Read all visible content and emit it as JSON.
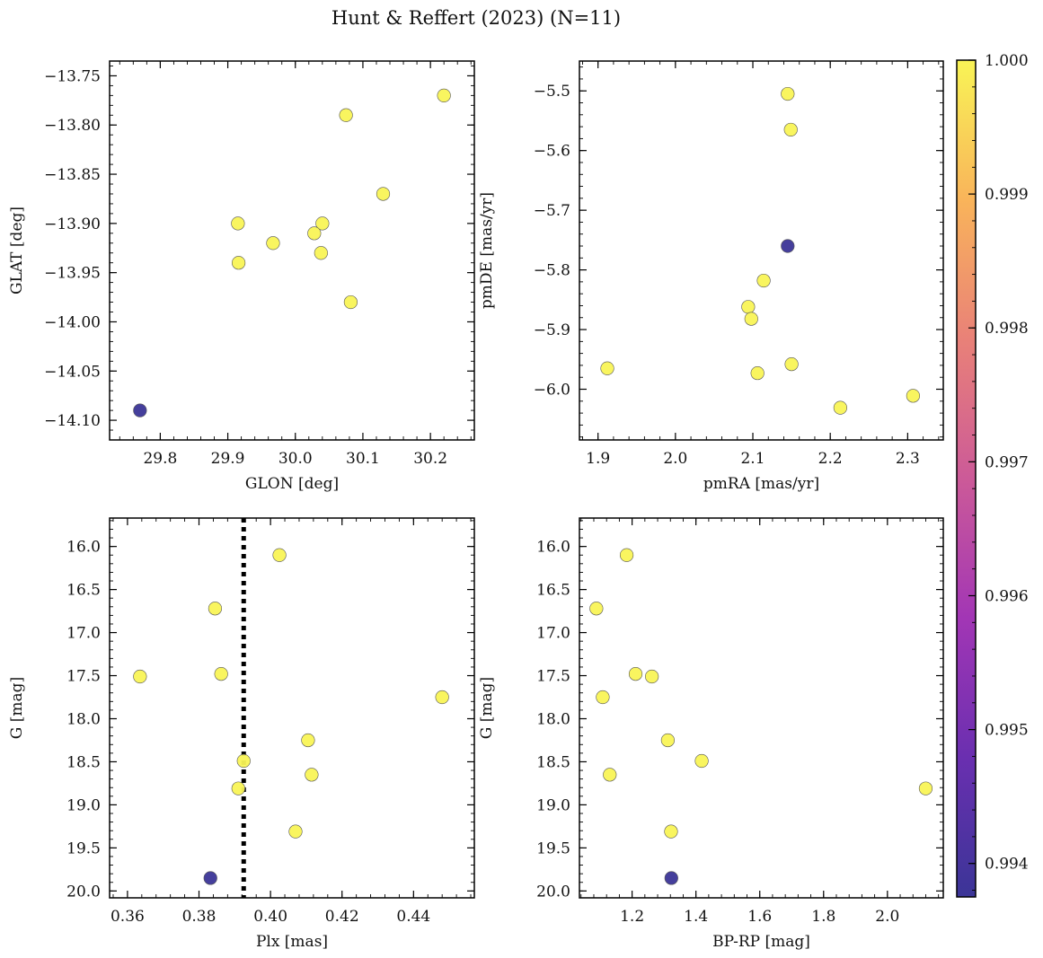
{
  "title": "Hunt & Reffert (2023) (N=11)",
  "colorbar": {
    "min": 0.99375,
    "max": 1.0,
    "ticks": [
      0.994,
      0.995,
      0.996,
      0.997,
      0.998,
      0.999,
      1.0
    ],
    "tick_labels": [
      "0.994",
      "0.995",
      "0.996",
      "0.997",
      "0.998",
      "0.999",
      "1.000"
    ],
    "colormap": "plasma",
    "colormap_stops": [
      "#3b3597",
      "#6a2fb0",
      "#a236b5",
      "#cc5a98",
      "#e98178",
      "#f9b45a",
      "#f9f456"
    ]
  },
  "colors": {
    "member_high": "#f0f050",
    "member_low": "#403c9a",
    "vline": "#000000"
  },
  "chart_data": [
    {
      "type": "scatter",
      "id": "glon-glat",
      "xlabel": "GLON [deg]",
      "ylabel": "GLAT [deg]",
      "xlim": [
        29.725,
        30.265
      ],
      "ylim": [
        -14.12,
        -13.735
      ],
      "y_inverted": false,
      "xticks": [
        29.8,
        29.9,
        30.0,
        30.1,
        30.2
      ],
      "xtick_labels": [
        "29.8",
        "29.9",
        "30.0",
        "30.1",
        "30.2"
      ],
      "xminor": 0.02,
      "yticks": [
        -13.75,
        -13.8,
        -13.85,
        -13.9,
        -13.95,
        -14.0,
        -14.05,
        -14.1
      ],
      "ytick_labels": [
        "−13.75",
        "−13.80",
        "−13.85",
        "−13.90",
        "−13.95",
        "−14.00",
        "−14.05",
        "−14.10"
      ],
      "yminor": 0.01,
      "points": [
        {
          "x": 30.22,
          "y": -13.77,
          "c": 1.0
        },
        {
          "x": 30.075,
          "y": -13.79,
          "c": 1.0
        },
        {
          "x": 30.13,
          "y": -13.87,
          "c": 1.0
        },
        {
          "x": 29.915,
          "y": -13.9,
          "c": 1.0
        },
        {
          "x": 30.04,
          "y": -13.9,
          "c": 1.0
        },
        {
          "x": 30.028,
          "y": -13.91,
          "c": 1.0
        },
        {
          "x": 29.967,
          "y": -13.92,
          "c": 1.0
        },
        {
          "x": 29.916,
          "y": -13.94,
          "c": 1.0
        },
        {
          "x": 30.038,
          "y": -13.93,
          "c": 1.0
        },
        {
          "x": 30.082,
          "y": -13.98,
          "c": 1.0
        },
        {
          "x": 29.77,
          "y": -14.09,
          "c": 0.99375
        }
      ]
    },
    {
      "type": "scatter",
      "id": "pmra-pmde",
      "xlabel": "pmRA [mas/yr]",
      "ylabel": "pmDE [mas/yr]",
      "xlim": [
        1.876,
        2.346
      ],
      "ylim": [
        -6.085,
        -5.45
      ],
      "y_inverted": false,
      "xticks": [
        1.9,
        2.0,
        2.1,
        2.2,
        2.3
      ],
      "xtick_labels": [
        "1.9",
        "2.0",
        "2.1",
        "2.2",
        "2.3"
      ],
      "xminor": 0.02,
      "yticks": [
        -5.5,
        -5.6,
        -5.7,
        -5.8,
        -5.9,
        -6.0
      ],
      "ytick_labels": [
        "−5.5",
        "−5.6",
        "−5.7",
        "−5.8",
        "−5.9",
        "−6.0"
      ],
      "yminor": 0.02,
      "points": [
        {
          "x": 2.145,
          "y": -5.505,
          "c": 1.0
        },
        {
          "x": 2.149,
          "y": -5.565,
          "c": 1.0
        },
        {
          "x": 2.145,
          "y": -5.76,
          "c": 0.99375
        },
        {
          "x": 2.114,
          "y": -5.818,
          "c": 1.0
        },
        {
          "x": 2.094,
          "y": -5.862,
          "c": 1.0
        },
        {
          "x": 2.098,
          "y": -5.882,
          "c": 1.0
        },
        {
          "x": 1.912,
          "y": -5.965,
          "c": 1.0
        },
        {
          "x": 2.106,
          "y": -5.973,
          "c": 1.0
        },
        {
          "x": 2.15,
          "y": -5.958,
          "c": 1.0
        },
        {
          "x": 2.213,
          "y": -6.031,
          "c": 1.0
        },
        {
          "x": 2.307,
          "y": -6.011,
          "c": 1.0
        }
      ]
    },
    {
      "type": "scatter",
      "id": "plx-g",
      "xlabel": "Plx [mas]",
      "ylabel": "G [mag]",
      "xlim": [
        0.355,
        0.457
      ],
      "ylim": [
        15.67,
        20.08
      ],
      "y_inverted": true,
      "xticks": [
        0.36,
        0.38,
        0.4,
        0.42,
        0.44
      ],
      "xtick_labels": [
        "0.36",
        "0.38",
        "0.40",
        "0.42",
        "0.44"
      ],
      "xminor": 0.004,
      "yticks": [
        16.0,
        16.5,
        17.0,
        17.5,
        18.0,
        18.5,
        19.0,
        19.5,
        20.0
      ],
      "ytick_labels": [
        "16.0",
        "16.5",
        "17.0",
        "17.5",
        "18.0",
        "18.5",
        "19.0",
        "19.5",
        "20.0"
      ],
      "yminor": 0.1,
      "vline": 0.3925,
      "points": [
        {
          "x": 0.4025,
          "y": 16.1,
          "c": 1.0
        },
        {
          "x": 0.3845,
          "y": 16.72,
          "c": 1.0
        },
        {
          "x": 0.3862,
          "y": 17.48,
          "c": 1.0
        },
        {
          "x": 0.3635,
          "y": 17.51,
          "c": 1.0
        },
        {
          "x": 0.448,
          "y": 17.75,
          "c": 1.0
        },
        {
          "x": 0.4105,
          "y": 18.25,
          "c": 1.0
        },
        {
          "x": 0.3925,
          "y": 18.49,
          "c": 1.0
        },
        {
          "x": 0.4115,
          "y": 18.65,
          "c": 1.0
        },
        {
          "x": 0.391,
          "y": 18.81,
          "c": 1.0
        },
        {
          "x": 0.407,
          "y": 19.31,
          "c": 1.0
        },
        {
          "x": 0.3832,
          "y": 19.85,
          "c": 0.99375
        }
      ]
    },
    {
      "type": "scatter",
      "id": "bprp-g",
      "xlabel": "BP-RP [mag]",
      "ylabel": "G [mag]",
      "xlim": [
        1.035,
        2.175
      ],
      "ylim": [
        15.67,
        20.08
      ],
      "y_inverted": true,
      "xticks": [
        1.2,
        1.4,
        1.6,
        1.8,
        2.0
      ],
      "xtick_labels": [
        "1.2",
        "1.4",
        "1.6",
        "1.8",
        "2.0"
      ],
      "xminor": 0.04,
      "yticks": [
        16.0,
        16.5,
        17.0,
        17.5,
        18.0,
        18.5,
        19.0,
        19.5,
        20.0
      ],
      "ytick_labels": [
        "16.0",
        "16.5",
        "17.0",
        "17.5",
        "18.0",
        "18.5",
        "19.0",
        "19.5",
        "20.0"
      ],
      "yminor": 0.1,
      "points": [
        {
          "x": 1.183,
          "y": 16.1,
          "c": 1.0
        },
        {
          "x": 1.088,
          "y": 16.72,
          "c": 1.0
        },
        {
          "x": 1.211,
          "y": 17.48,
          "c": 1.0
        },
        {
          "x": 1.262,
          "y": 17.51,
          "c": 1.0
        },
        {
          "x": 1.108,
          "y": 17.75,
          "c": 1.0
        },
        {
          "x": 1.312,
          "y": 18.25,
          "c": 1.0
        },
        {
          "x": 1.418,
          "y": 18.49,
          "c": 1.0
        },
        {
          "x": 1.13,
          "y": 18.65,
          "c": 1.0
        },
        {
          "x": 2.12,
          "y": 18.81,
          "c": 1.0
        },
        {
          "x": 1.322,
          "y": 19.31,
          "c": 1.0
        },
        {
          "x": 1.323,
          "y": 19.85,
          "c": 0.99375
        }
      ]
    }
  ]
}
